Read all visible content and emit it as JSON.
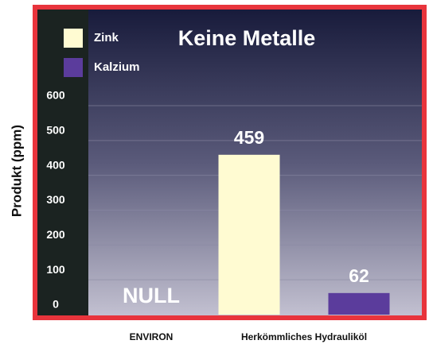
{
  "chart_data": {
    "type": "bar",
    "title": "Keine Metalle",
    "y_label": "Produkt (ppm)",
    "categories": [
      "ENVIRON",
      "Herkömmliches Hydrauliköl"
    ],
    "series": [
      {
        "name": "Zink",
        "color": "#fffbd2",
        "values": [
          null,
          459
        ]
      },
      {
        "name": "Kalzium",
        "color": "#5b3c9c",
        "values": [
          null,
          62
        ]
      }
    ],
    "annotations": [
      "NULL"
    ],
    "ylim": [
      0,
      600
    ],
    "yticks": [
      0,
      100,
      200,
      300,
      400,
      500,
      600
    ],
    "grid": true,
    "legend": "top-left"
  }
}
